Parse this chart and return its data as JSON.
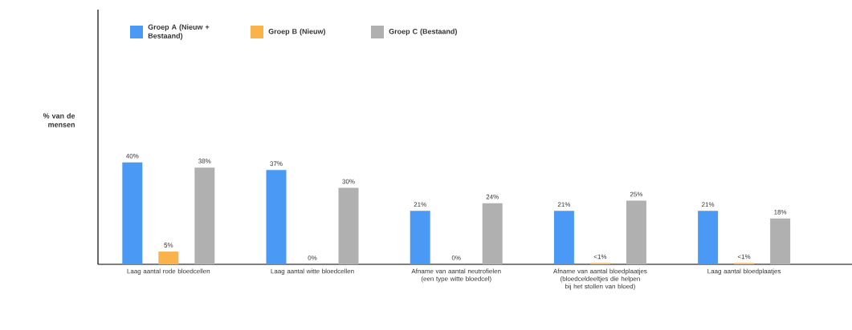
{
  "chart_data": {
    "type": "bar",
    "ylabel": "% van de mensen",
    "categories": [
      "Laag aantal rode bloedcellen",
      "Laag aantal witte bloedcellen",
      "Afname van aantal neutrofielen (een type witte bloedcel)",
      "Afname van aantal bloedplaatjes (bloedceldeeltjes die helpen bij het stollen van bloed)",
      "Laag aantal bloedplaatjes"
    ],
    "series": [
      {
        "name": "Groep A (Nieuw + Bestaand)",
        "color": "#4a9af5",
        "values": [
          40,
          37,
          21,
          21,
          21
        ],
        "value_labels": [
          "40%",
          "37%",
          "21%",
          "21%",
          "21%"
        ]
      },
      {
        "name": "Groep B (Nieuw)",
        "color": "#f9b34a",
        "values": [
          5,
          0,
          0,
          0.5,
          0.5
        ],
        "value_labels": [
          "5%",
          "0%",
          "0%",
          "<1%",
          "<1%"
        ]
      },
      {
        "name": "Groep C (Bestaand)",
        "color": "#b0b0b0",
        "values": [
          38,
          30,
          24,
          25,
          18
        ],
        "value_labels": [
          "38%",
          "30%",
          "24%",
          "25%",
          "18%"
        ]
      }
    ],
    "ylim": [
      0,
      100
    ],
    "legend": "top left"
  }
}
